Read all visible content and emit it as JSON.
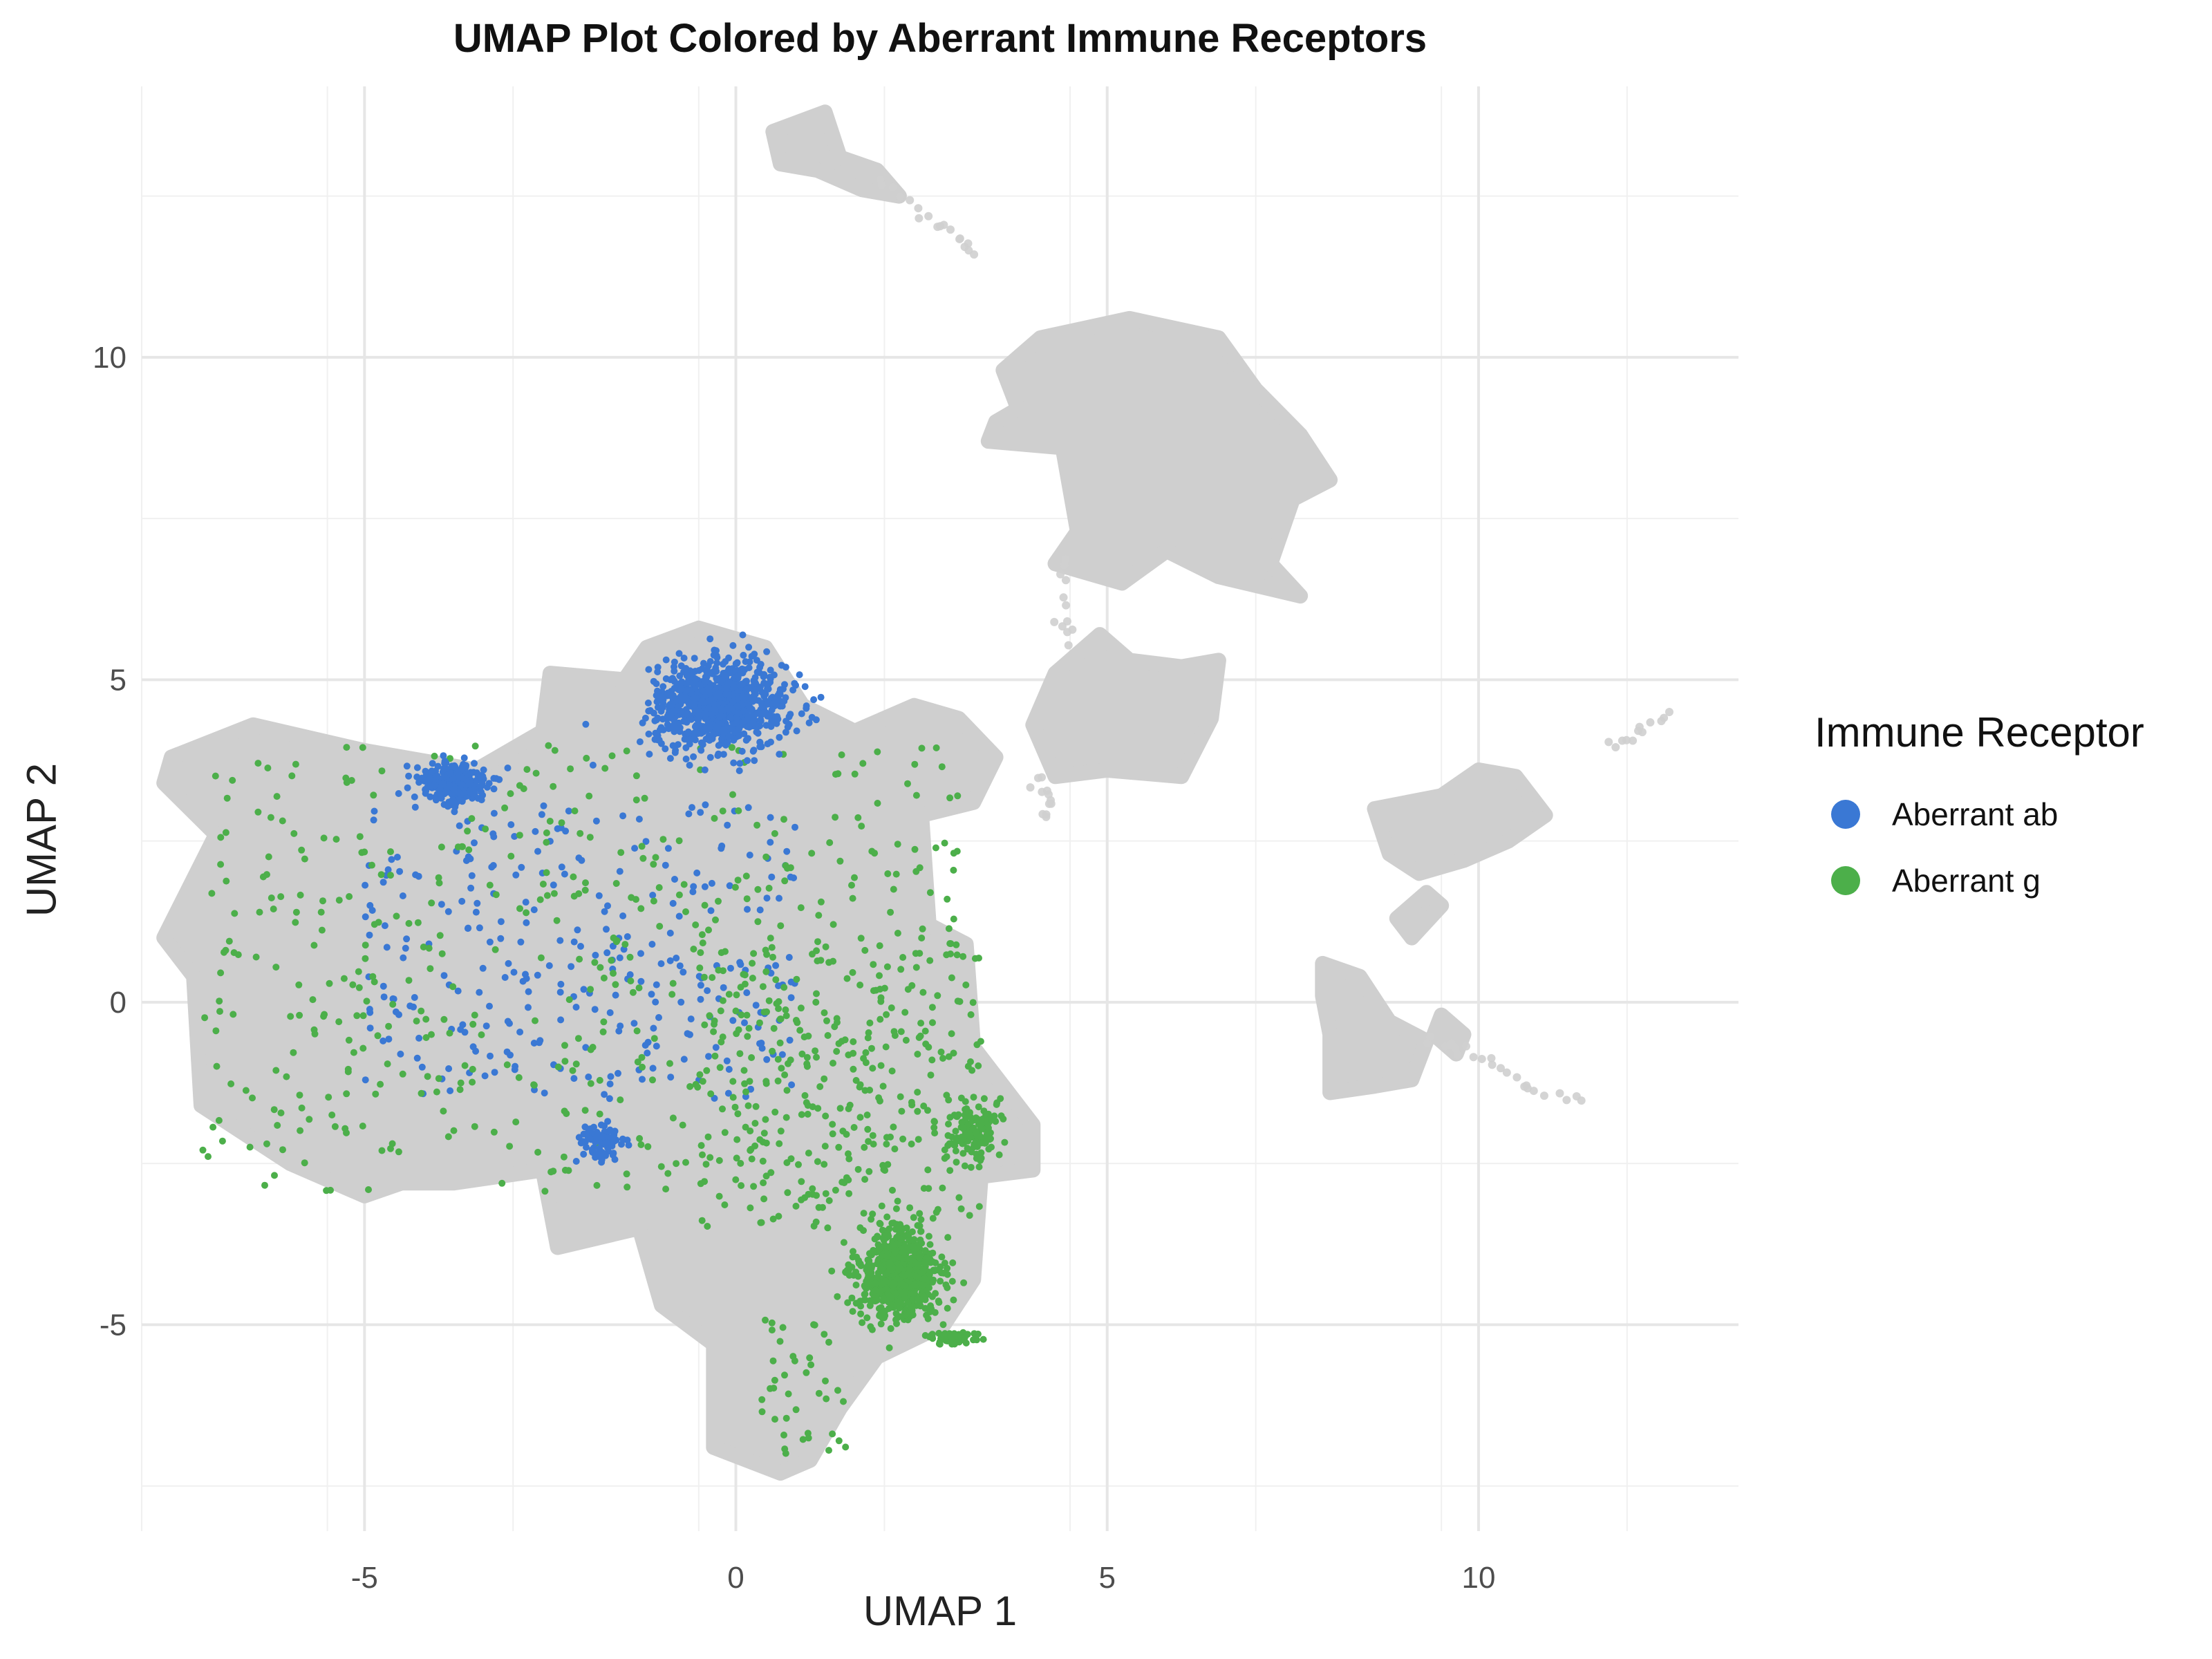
{
  "chart_data": {
    "type": "scatter",
    "title": "UMAP Plot Colored by Aberrant Immune Receptors",
    "xlabel": "UMAP 1",
    "ylabel": "UMAP 2",
    "xlim": [
      -8.0,
      13.5
    ],
    "ylim": [
      -8.2,
      14.2
    ],
    "xticks": [
      -5,
      0,
      5,
      10
    ],
    "yticks": [
      -5,
      0,
      5,
      10
    ],
    "grid": true,
    "legend": {
      "title": "Immune Receptor",
      "position": "right"
    },
    "series": [
      {
        "name": "Aberrant ab",
        "color": "#3a78d4"
      },
      {
        "name": "Aberrant g",
        "color": "#4caf4a"
      }
    ],
    "background_color": "#cfcfcf",
    "background_clusters": [
      {
        "points": [
          [
            -7.6,
            3.8
          ],
          [
            -6.5,
            4.3
          ],
          [
            -5.0,
            3.9
          ],
          [
            -3.5,
            3.6
          ],
          [
            -2.6,
            4.2
          ],
          [
            -2.5,
            5.1
          ],
          [
            -1.5,
            5.0
          ],
          [
            -1.2,
            5.5
          ],
          [
            -0.5,
            5.8
          ],
          [
            0.4,
            5.5
          ],
          [
            0.9,
            4.6
          ],
          [
            1.6,
            4.2
          ],
          [
            2.4,
            4.6
          ],
          [
            3.0,
            4.4
          ],
          [
            3.5,
            3.8
          ],
          [
            3.2,
            3.1
          ],
          [
            2.5,
            2.9
          ],
          [
            2.6,
            1.2
          ],
          [
            3.1,
            0.9
          ],
          [
            3.2,
            -0.7
          ],
          [
            4.0,
            -1.9
          ],
          [
            4.0,
            -2.6
          ],
          [
            3.3,
            -2.7
          ],
          [
            3.2,
            -4.3
          ],
          [
            2.8,
            -5.0
          ],
          [
            1.9,
            -5.5
          ],
          [
            1.4,
            -6.3
          ],
          [
            1.0,
            -7.1
          ],
          [
            0.6,
            -7.3
          ],
          [
            -0.3,
            -6.9
          ],
          [
            -0.3,
            -5.3
          ],
          [
            -1.0,
            -4.7
          ],
          [
            -1.3,
            -3.5
          ],
          [
            -2.4,
            -3.8
          ],
          [
            -2.6,
            -2.6
          ],
          [
            -3.8,
            -2.8
          ],
          [
            -4.5,
            -2.8
          ],
          [
            -5.0,
            -3.0
          ],
          [
            -6.0,
            -2.5
          ],
          [
            -7.2,
            -1.6
          ],
          [
            -7.3,
            0.4
          ],
          [
            -7.7,
            1.0
          ],
          [
            -7.0,
            2.6
          ],
          [
            -7.7,
            3.4
          ]
        ]
      },
      {
        "points": [
          [
            0.5,
            13.5
          ],
          [
            1.2,
            13.8
          ],
          [
            1.4,
            13.1
          ],
          [
            1.9,
            12.9
          ],
          [
            2.2,
            12.5
          ],
          [
            1.7,
            12.6
          ],
          [
            1.1,
            12.9
          ],
          [
            0.6,
            13.0
          ]
        ]
      },
      {
        "points": [
          [
            3.5,
            9.0
          ],
          [
            3.4,
            8.7
          ],
          [
            4.4,
            8.6
          ],
          [
            4.6,
            7.3
          ],
          [
            4.3,
            6.8
          ],
          [
            5.2,
            6.5
          ],
          [
            5.8,
            7.0
          ],
          [
            6.5,
            6.6
          ],
          [
            7.6,
            6.3
          ],
          [
            7.2,
            6.8
          ],
          [
            7.5,
            7.8
          ],
          [
            8.0,
            8.1
          ],
          [
            7.6,
            8.8
          ],
          [
            7.0,
            9.5
          ],
          [
            6.5,
            10.3
          ],
          [
            5.3,
            10.6
          ],
          [
            4.1,
            10.3
          ],
          [
            3.6,
            9.8
          ],
          [
            3.8,
            9.2
          ]
        ]
      },
      {
        "points": [
          [
            4.3,
            5.1
          ],
          [
            4.9,
            5.7
          ],
          [
            5.3,
            5.3
          ],
          [
            6.0,
            5.2
          ],
          [
            6.5,
            5.3
          ],
          [
            6.4,
            4.4
          ],
          [
            6.0,
            3.5
          ],
          [
            5.0,
            3.6
          ],
          [
            4.3,
            3.5
          ],
          [
            4.0,
            4.3
          ]
        ]
      },
      {
        "points": [
          [
            8.6,
            3.0
          ],
          [
            9.5,
            3.2
          ],
          [
            10.0,
            3.6
          ],
          [
            10.5,
            3.5
          ],
          [
            10.9,
            2.9
          ],
          [
            10.4,
            2.5
          ],
          [
            9.8,
            2.2
          ],
          [
            9.2,
            2.0
          ],
          [
            8.8,
            2.3
          ]
        ]
      },
      {
        "points": [
          [
            8.9,
            1.3
          ],
          [
            9.3,
            1.7
          ],
          [
            9.5,
            1.5
          ],
          [
            9.1,
            1.0
          ]
        ]
      },
      {
        "points": [
          [
            7.9,
            0.6
          ],
          [
            8.4,
            0.4
          ],
          [
            8.8,
            -0.3
          ],
          [
            9.3,
            -0.6
          ],
          [
            9.1,
            -1.2
          ],
          [
            8.6,
            -1.3
          ],
          [
            8.0,
            -1.4
          ],
          [
            8.0,
            -0.5
          ],
          [
            7.9,
            0.1
          ]
        ]
      },
      {
        "points": [
          [
            9.5,
            -0.2
          ],
          [
            9.8,
            -0.5
          ],
          [
            9.7,
            -0.8
          ],
          [
            9.4,
            -0.5
          ]
        ]
      }
    ],
    "background_trails": [
      [
        [
          1.9,
          12.7
        ],
        [
          2.5,
          12.2
        ],
        [
          3.0,
          11.9
        ],
        [
          3.2,
          11.5
        ]
      ],
      [
        [
          11.8,
          4.0
        ],
        [
          12.2,
          4.2
        ],
        [
          12.6,
          4.5
        ]
      ],
      [
        [
          4.4,
          6.9
        ],
        [
          4.4,
          6.0
        ],
        [
          4.5,
          5.5
        ]
      ],
      [
        [
          4.0,
          3.5
        ],
        [
          4.2,
          3.1
        ],
        [
          4.2,
          2.8
        ]
      ],
      [
        [
          9.3,
          -0.6
        ],
        [
          9.8,
          -0.7
        ],
        [
          10.3,
          -1.0
        ],
        [
          10.8,
          -1.4
        ],
        [
          11.5,
          -1.6
        ]
      ]
    ],
    "dense_clusters": [
      {
        "series": "Aberrant ab",
        "center": [
          -0.2,
          4.6
        ],
        "spread": [
          0.8,
          0.6
        ],
        "count": 900
      },
      {
        "series": "Aberrant ab",
        "center": [
          -3.8,
          3.4
        ],
        "spread": [
          0.42,
          0.3
        ],
        "count": 280
      },
      {
        "series": "Aberrant ab",
        "center": [
          -1.8,
          -2.2
        ],
        "spread": [
          0.32,
          0.3
        ],
        "count": 80
      },
      {
        "series": "Aberrant g",
        "center": [
          2.2,
          -4.2
        ],
        "spread": [
          0.5,
          0.65
        ],
        "count": 650
      },
      {
        "series": "Aberrant g",
        "center": [
          3.2,
          -2.0
        ],
        "spread": [
          0.3,
          0.45
        ],
        "count": 140
      },
      {
        "series": "Aberrant g",
        "center": [
          2.9,
          -5.2
        ],
        "spread": [
          0.3,
          0.1
        ],
        "count": 50
      }
    ],
    "scattered_regions": [
      {
        "series": "Aberrant ab",
        "x": [
          -5.0,
          0.8
        ],
        "y": [
          -1.5,
          3.1
        ],
        "count": 300
      },
      {
        "series": "Aberrant g",
        "x": [
          -7.2,
          3.0
        ],
        "y": [
          -3.0,
          4.0
        ],
        "count": 520
      },
      {
        "series": "Aberrant g",
        "x": [
          -0.5,
          3.3
        ],
        "y": [
          -3.5,
          1.0
        ],
        "count": 260
      },
      {
        "series": "Aberrant g",
        "x": [
          0.3,
          1.6
        ],
        "y": [
          -7.0,
          -4.8
        ],
        "count": 40
      }
    ]
  }
}
